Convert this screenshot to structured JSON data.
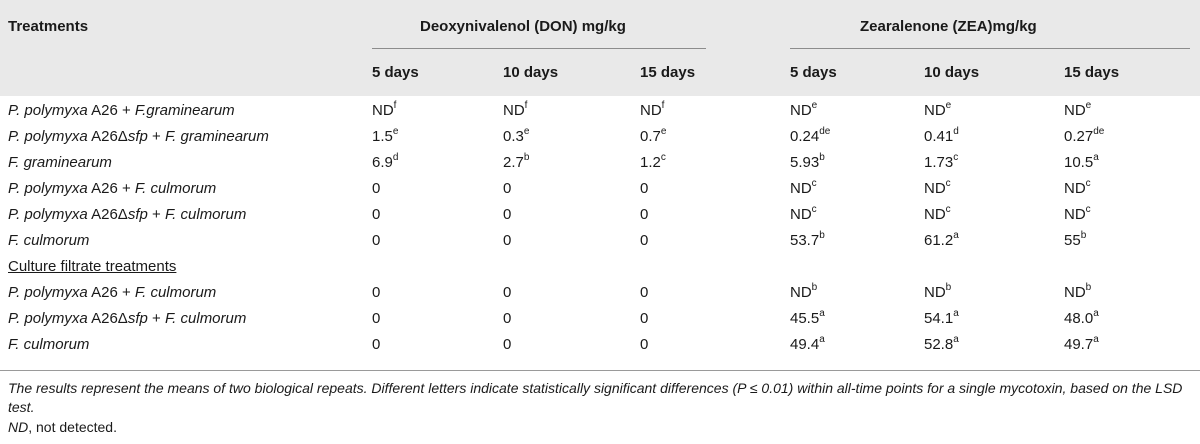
{
  "header": {
    "treatments": "Treatments",
    "don_group": "Deoxynivalenol (DON) mg/kg",
    "zea_group": "Zearalenone (ZEA)mg/kg",
    "days": [
      "5 days",
      "10 days",
      "15 days",
      "5 days",
      "10 days",
      "15 days"
    ]
  },
  "rows": [
    {
      "label_a": "P. polymyxa",
      "label_b": " A26 + ",
      "label_c": "F.graminearum",
      "vals": [
        [
          "ND",
          "f"
        ],
        [
          "ND",
          "f"
        ],
        [
          "ND",
          "f"
        ],
        [
          "ND",
          "e"
        ],
        [
          "ND",
          "e"
        ],
        [
          "ND",
          "e"
        ]
      ]
    },
    {
      "label_a": "P. polymyxa",
      "label_b": " A26Δ",
      "label_c": "sfp",
      "label_d": " + ",
      "label_e": "F. graminearum",
      "vals": [
        [
          "1.5",
          "e"
        ],
        [
          "0.3",
          "e"
        ],
        [
          "0.7",
          "e"
        ],
        [
          "0.24",
          "de"
        ],
        [
          "0.41",
          "d"
        ],
        [
          "0.27",
          "de"
        ]
      ]
    },
    {
      "label_a": "F. graminearum",
      "vals": [
        [
          "6.9",
          "d"
        ],
        [
          "2.7",
          "b"
        ],
        [
          "1.2",
          "c"
        ],
        [
          "5.93",
          "b"
        ],
        [
          "1.73",
          "c"
        ],
        [
          "10.5",
          "a"
        ]
      ]
    },
    {
      "label_a": "P. polymyxa",
      "label_b": " A26 + ",
      "label_c": "F. culmorum",
      "vals": [
        [
          "0",
          ""
        ],
        [
          "0",
          ""
        ],
        [
          "0",
          ""
        ],
        [
          "ND",
          "c"
        ],
        [
          "ND",
          "c"
        ],
        [
          "ND",
          "c"
        ]
      ]
    },
    {
      "label_a": "P. polymyxa",
      "label_b": " A26Δ",
      "label_c": "sfp",
      "label_d": " + ",
      "label_e": "F. culmorum",
      "vals": [
        [
          "0",
          ""
        ],
        [
          "0",
          ""
        ],
        [
          "0",
          ""
        ],
        [
          "ND",
          "c"
        ],
        [
          "ND",
          "c"
        ],
        [
          "ND",
          "c"
        ]
      ]
    },
    {
      "label_a": "F. culmorum",
      "vals": [
        [
          "0",
          ""
        ],
        [
          "0",
          ""
        ],
        [
          "0",
          ""
        ],
        [
          "53.7",
          "b"
        ],
        [
          "61.2",
          "a"
        ],
        [
          "55",
          "b"
        ]
      ]
    }
  ],
  "section_label": "Culture filtrate treatments",
  "rows2": [
    {
      "label_a": "P. polymyxa",
      "label_b": " A26 + ",
      "label_c": "F. culmorum",
      "vals": [
        [
          "0",
          ""
        ],
        [
          "0",
          ""
        ],
        [
          "0",
          ""
        ],
        [
          "ND",
          "b"
        ],
        [
          "ND",
          "b"
        ],
        [
          "ND",
          "b"
        ]
      ]
    },
    {
      "label_a": "P. polymyxa",
      "label_b": " A26Δ",
      "label_c": "sfp",
      "label_d": " + ",
      "label_e": "F. culmorum",
      "vals": [
        [
          "0",
          ""
        ],
        [
          "0",
          ""
        ],
        [
          "0",
          ""
        ],
        [
          "45.5",
          "a"
        ],
        [
          "54.1",
          "a"
        ],
        [
          "48.0",
          "a"
        ]
      ]
    },
    {
      "label_a": "F. culmorum",
      "vals": [
        [
          "0",
          ""
        ],
        [
          "0",
          ""
        ],
        [
          "0",
          ""
        ],
        [
          "49.4",
          "a"
        ],
        [
          "52.8",
          "a"
        ],
        [
          "49.7",
          "a"
        ]
      ]
    }
  ],
  "footnotes": {
    "note1": "The results represent the means of two biological repeats. Different letters indicate statistically significant differences (P ≤ 0.01) within all-time points for a single mycotoxin, based on the LSD test.",
    "note2": "ND, not detected."
  }
}
